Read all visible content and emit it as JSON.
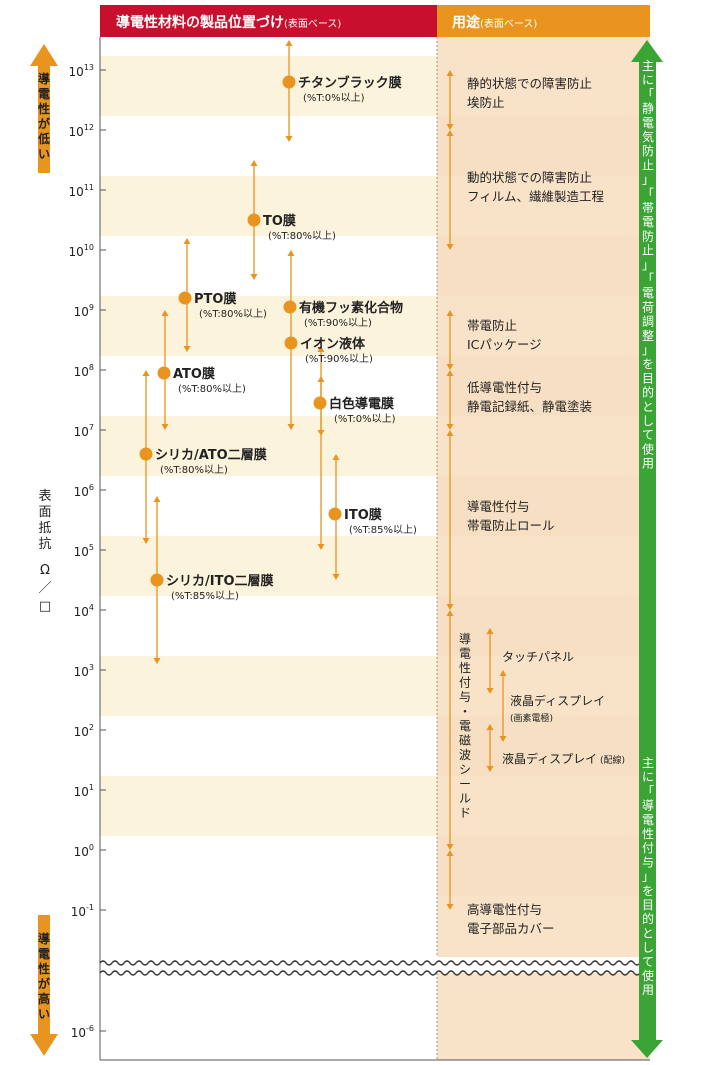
{
  "header": {
    "left_title": "導電性材料の製品位置づけ",
    "left_sub": "(表面ベース)",
    "right_title": "用途",
    "right_sub": "(表面ベース)"
  },
  "side": {
    "top_arrow_label": "導電性が低い",
    "bottom_arrow_label": "導電性が高い",
    "axis_label": "表面抵抗",
    "axis_unit": "Ω／□",
    "right_top_label": "主に「静電気防止」「帯電防止」「電荷調整」を目的として使用",
    "right_bottom_label": "主に「導電性付与」を目的として使用"
  },
  "colors": {
    "header_red": "#c8102e",
    "header_orange": "#e8941f",
    "marker_orange": "#e8941f",
    "band_cream": "#fcf3dc",
    "band_tan": "#f8e3c8",
    "green": "#3aa535"
  },
  "chart_data": {
    "type": "range",
    "ylabel": "表面抵抗 Ω／□",
    "y_scale": "log",
    "y_ticks": [
      {
        "base": "10",
        "exp": "13",
        "value": 13
      },
      {
        "base": "10",
        "exp": "12",
        "value": 12
      },
      {
        "base": "10",
        "exp": "11",
        "value": 11
      },
      {
        "base": "10",
        "exp": "10",
        "value": 10
      },
      {
        "base": "10",
        "exp": "9",
        "value": 9
      },
      {
        "base": "10",
        "exp": "8",
        "value": 8
      },
      {
        "base": "10",
        "exp": "7",
        "value": 7
      },
      {
        "base": "10",
        "exp": "6",
        "value": 6
      },
      {
        "base": "10",
        "exp": "5",
        "value": 5
      },
      {
        "base": "10",
        "exp": "4",
        "value": 4
      },
      {
        "base": "10",
        "exp": "3",
        "value": 3
      },
      {
        "base": "10",
        "exp": "2",
        "value": 2
      },
      {
        "base": "10",
        "exp": "1",
        "value": 1
      },
      {
        "base": "10",
        "exp": "0",
        "value": 0
      },
      {
        "base": "10",
        "exp": "-1",
        "value": -1
      },
      {
        "base": "10",
        "exp": "-6",
        "value": -6
      }
    ],
    "products": [
      {
        "name": "チタンブラック膜",
        "note": "(%T:0%以上)",
        "min_exp": 11.8,
        "max_exp": 13.5,
        "point_exp": 12.8
      },
      {
        "name": "TO膜",
        "note": "(%T:80%以上)",
        "min_exp": 9.5,
        "max_exp": 11.5,
        "point_exp": 10.5
      },
      {
        "name": "PTO膜",
        "note": "(%T:80%以上)",
        "min_exp": 8.3,
        "max_exp": 10.2,
        "point_exp": 9.2
      },
      {
        "name": "有機フッ素化合物",
        "note": "(%T:90%以上)",
        "min_exp": 7.0,
        "max_exp": 10.0,
        "point_exp": 9.05
      },
      {
        "name": "イオン液体",
        "note": "(%T:90%以上)",
        "min_exp": 6.9,
        "max_exp": 8.4,
        "point_exp": 8.45
      },
      {
        "name": "ATO膜",
        "note": "(%T:80%以上)",
        "min_exp": 7.0,
        "max_exp": 9.0,
        "point_exp": 7.95
      },
      {
        "name": "白色導電膜",
        "note": "(%T:0%以上)",
        "min_exp": 5.0,
        "max_exp": 7.9,
        "point_exp": 7.45
      },
      {
        "name": "シリカ/ATO二層膜",
        "note": "(%T:80%以上)",
        "min_exp": 5.1,
        "max_exp": 8.0,
        "point_exp": 6.6
      },
      {
        "name": "ITO膜",
        "note": "(%T:85%以上)",
        "min_exp": 4.5,
        "max_exp": 6.6,
        "point_exp": 5.6
      },
      {
        "name": "シリカ/ITO二層膜",
        "note": "(%T:85%以上)",
        "min_exp": 3.1,
        "max_exp": 5.9,
        "point_exp": 4.5
      }
    ],
    "uses": [
      {
        "lines": [
          "静的状態での障害防止",
          "埃防止"
        ],
        "min_exp": 12,
        "max_exp": 13
      },
      {
        "lines": [
          "動的状態での障害防止",
          "フィルム、繊維製造工程"
        ],
        "min_exp": 10,
        "max_exp": 12
      },
      {
        "lines": [
          "帯電防止",
          "ICパッケージ"
        ],
        "min_exp": 8,
        "max_exp": 9
      },
      {
        "lines": [
          "低導電性付与",
          "静電記録紙、静電塗装"
        ],
        "min_exp": 7,
        "max_exp": 8
      },
      {
        "lines": [
          "導電性付与",
          "帯電防止ロール"
        ],
        "min_exp": 4,
        "max_exp": 7
      },
      {
        "lines": [
          "高導電性付与",
          "電子部品カバー"
        ],
        "min_exp": -1,
        "max_exp": 0
      }
    ],
    "shield": {
      "label": "導電性付与・電磁波シールド",
      "min_exp": 0,
      "max_exp": 4,
      "items": [
        {
          "label": "タッチパネル",
          "sub": "",
          "min_exp": 2.6,
          "max_exp": 3.7
        },
        {
          "label": "液晶ディスプレイ",
          "sub": "(画素電極)",
          "min_exp": 1.8,
          "max_exp": 3.0
        },
        {
          "label": "液晶ディスプレイ",
          "sub": "(配線)",
          "min_exp": 1.3,
          "max_exp": 2.1
        }
      ]
    }
  }
}
